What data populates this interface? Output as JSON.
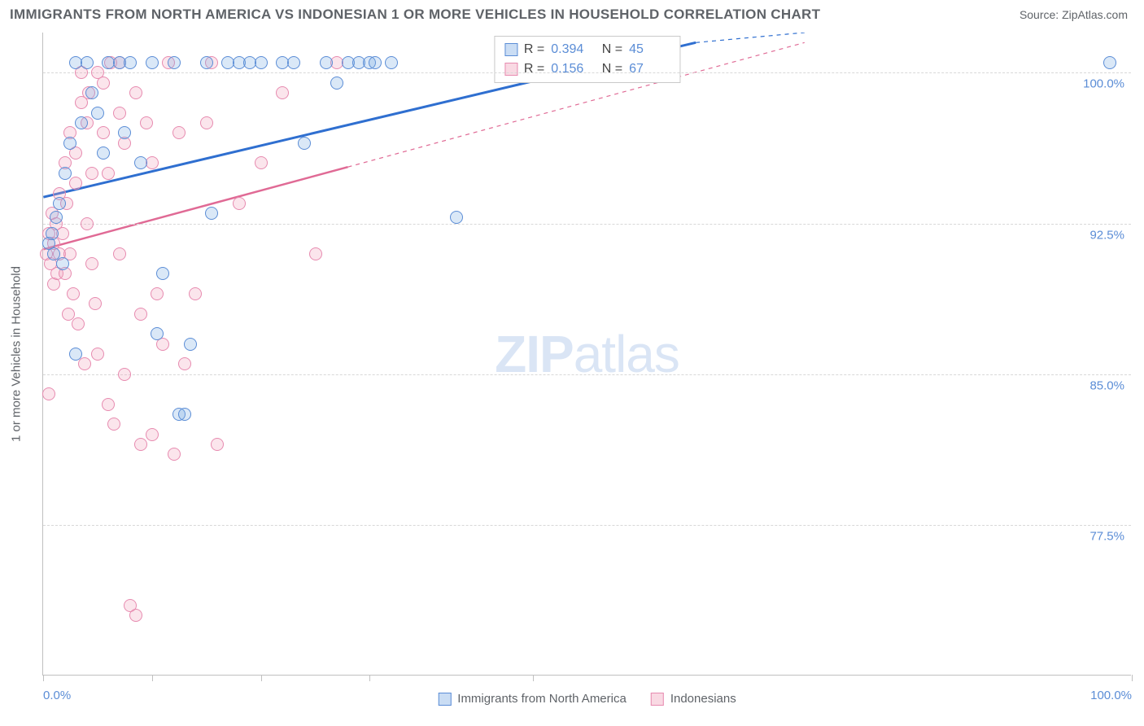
{
  "title": "IMMIGRANTS FROM NORTH AMERICA VS INDONESIAN 1 OR MORE VEHICLES IN HOUSEHOLD CORRELATION CHART",
  "source": "Source: ZipAtlas.com",
  "watermark_bold": "ZIP",
  "watermark_rest": "atlas",
  "yaxis_label": "1 or more Vehicles in Household",
  "chart": {
    "type": "scatter",
    "background_color": "#ffffff",
    "grid_color": "#d8d8d8",
    "axis_color": "#c0c0c0",
    "label_color": "#5b8dd6",
    "text_color": "#5f6368",
    "xlim": [
      0,
      100
    ],
    "ylim": [
      70,
      102
    ],
    "ytick_labels": [
      "100.0%",
      "92.5%",
      "85.0%",
      "77.5%"
    ],
    "ytick_values": [
      100,
      92.5,
      85,
      77.5
    ],
    "xtick_values": [
      0,
      10,
      20,
      30,
      45,
      100
    ],
    "xtick_labels": {
      "0": "0.0%",
      "100": "100.0%"
    },
    "marker_radius": 8,
    "series": [
      {
        "name": "Immigrants from North America",
        "color_fill": "rgba(123,171,227,0.28)",
        "color_stroke": "#5b8dd6",
        "trend_color": "#2f6fd0",
        "trend_width": 3,
        "R": "0.394",
        "N": "45",
        "trend": {
          "x1": 0,
          "y1": 93.8,
          "x2": 60,
          "y2": 101.5
        },
        "trend_dash_after_x": 60,
        "trend_dash_end": {
          "x": 70,
          "y": 102
        },
        "points": [
          [
            0.5,
            91.5
          ],
          [
            0.8,
            92.0
          ],
          [
            1.0,
            91.0
          ],
          [
            1.2,
            92.8
          ],
          [
            1.5,
            93.5
          ],
          [
            1.8,
            90.5
          ],
          [
            2.0,
            95.0
          ],
          [
            2.5,
            96.5
          ],
          [
            3.0,
            100.5
          ],
          [
            3.5,
            97.5
          ],
          [
            4.0,
            100.5
          ],
          [
            4.5,
            99.0
          ],
          [
            5.0,
            98.0
          ],
          [
            5.5,
            96.0
          ],
          [
            6.0,
            100.5
          ],
          [
            7.0,
            100.5
          ],
          [
            7.5,
            97.0
          ],
          [
            8.0,
            100.5
          ],
          [
            9.0,
            95.5
          ],
          [
            10.0,
            100.5
          ],
          [
            10.5,
            87.0
          ],
          [
            11.0,
            90.0
          ],
          [
            12.0,
            100.5
          ],
          [
            12.5,
            83.0
          ],
          [
            13.0,
            83.0
          ],
          [
            13.5,
            86.5
          ],
          [
            15.0,
            100.5
          ],
          [
            15.5,
            93.0
          ],
          [
            17.0,
            100.5
          ],
          [
            18.0,
            100.5
          ],
          [
            19.0,
            100.5
          ],
          [
            20.0,
            100.5
          ],
          [
            22.0,
            100.5
          ],
          [
            23.0,
            100.5
          ],
          [
            24.0,
            96.5
          ],
          [
            26.0,
            100.5
          ],
          [
            27.0,
            99.5
          ],
          [
            28.0,
            100.5
          ],
          [
            29.0,
            100.5
          ],
          [
            30.0,
            100.5
          ],
          [
            30.5,
            100.5
          ],
          [
            32.0,
            100.5
          ],
          [
            38.0,
            92.8
          ],
          [
            98.0,
            100.5
          ],
          [
            3.0,
            86.0
          ]
        ]
      },
      {
        "name": "Indonesians",
        "color_fill": "rgba(240,160,185,0.28)",
        "color_stroke": "#e78bb0",
        "trend_color": "#e06a95",
        "trend_width": 2.5,
        "R": "0.156",
        "N": "67",
        "trend": {
          "x1": 0,
          "y1": 91.2,
          "x2": 28,
          "y2": 95.3
        },
        "trend_dash_after_x": 28,
        "trend_dash_end": {
          "x": 70,
          "y": 101.5
        },
        "points": [
          [
            0.3,
            91.0
          ],
          [
            0.5,
            92.0
          ],
          [
            0.7,
            90.5
          ],
          [
            0.8,
            93.0
          ],
          [
            1.0,
            91.5
          ],
          [
            1.0,
            89.5
          ],
          [
            1.2,
            92.5
          ],
          [
            1.3,
            90.0
          ],
          [
            1.5,
            91.0
          ],
          [
            1.5,
            94.0
          ],
          [
            1.8,
            92.0
          ],
          [
            2.0,
            90.0
          ],
          [
            2.0,
            95.5
          ],
          [
            2.2,
            93.5
          ],
          [
            2.3,
            88.0
          ],
          [
            2.5,
            91.0
          ],
          [
            2.5,
            97.0
          ],
          [
            2.8,
            89.0
          ],
          [
            3.0,
            94.5
          ],
          [
            3.0,
            96.0
          ],
          [
            3.2,
            87.5
          ],
          [
            3.5,
            98.5
          ],
          [
            3.5,
            100.0
          ],
          [
            3.8,
            85.5
          ],
          [
            4.0,
            92.5
          ],
          [
            4.0,
            97.5
          ],
          [
            4.2,
            99.0
          ],
          [
            4.5,
            90.5
          ],
          [
            4.5,
            95.0
          ],
          [
            4.8,
            88.5
          ],
          [
            5.0,
            100.0
          ],
          [
            5.0,
            86.0
          ],
          [
            5.5,
            97.0
          ],
          [
            5.5,
            99.5
          ],
          [
            6.0,
            83.5
          ],
          [
            6.0,
            95.0
          ],
          [
            6.2,
            100.5
          ],
          [
            6.5,
            82.5
          ],
          [
            7.0,
            91.0
          ],
          [
            7.0,
            98.0
          ],
          [
            7.5,
            85.0
          ],
          [
            7.5,
            96.5
          ],
          [
            8.0,
            73.5
          ],
          [
            8.5,
            73.0
          ],
          [
            8.5,
            99.0
          ],
          [
            9.0,
            81.5
          ],
          [
            9.0,
            88.0
          ],
          [
            9.5,
            97.5
          ],
          [
            10.0,
            82.0
          ],
          [
            10.0,
            95.5
          ],
          [
            10.5,
            89.0
          ],
          [
            11.0,
            86.5
          ],
          [
            11.5,
            100.5
          ],
          [
            12.0,
            81.0
          ],
          [
            12.5,
            97.0
          ],
          [
            13.0,
            85.5
          ],
          [
            14.0,
            89.0
          ],
          [
            15.0,
            97.5
          ],
          [
            15.5,
            100.5
          ],
          [
            16.0,
            81.5
          ],
          [
            18.0,
            93.5
          ],
          [
            20.0,
            95.5
          ],
          [
            22.0,
            99.0
          ],
          [
            25.0,
            91.0
          ],
          [
            27.0,
            100.5
          ],
          [
            0.5,
            84.0
          ],
          [
            7.0,
            100.5
          ]
        ]
      }
    ]
  },
  "legend_bottom": [
    {
      "swatch": "blue",
      "label": "Immigrants from North America"
    },
    {
      "swatch": "pink",
      "label": "Indonesians"
    }
  ]
}
